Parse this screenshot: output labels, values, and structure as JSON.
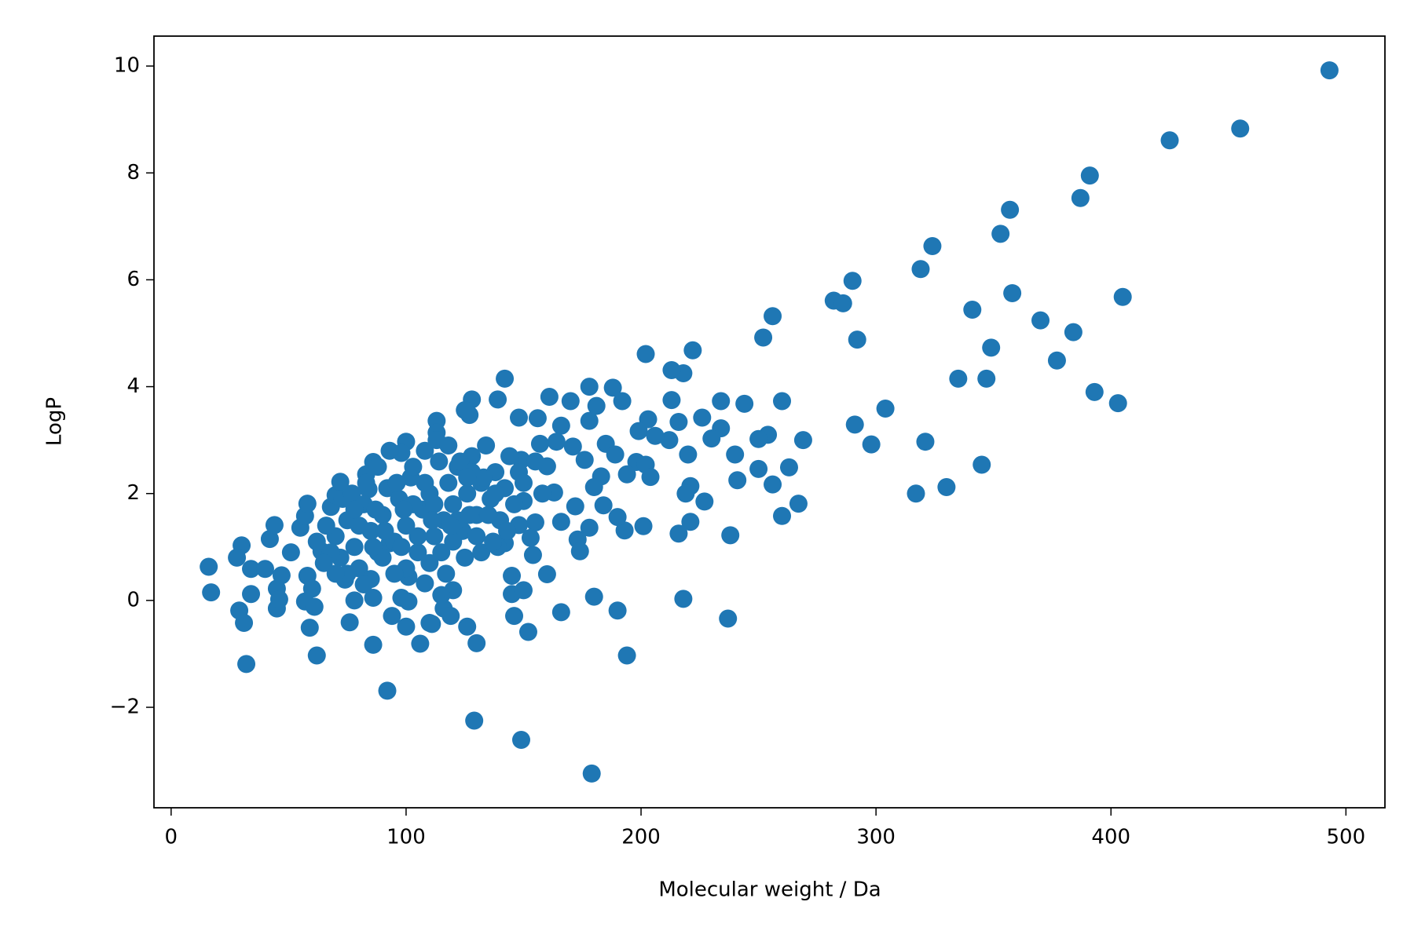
{
  "chart_data": {
    "type": "scatter",
    "x_label": "Molecular weight / Da",
    "y_label": "LogP",
    "color": "#1f77b4",
    "xlim": [
      -7.3,
      516.6
    ],
    "ylim": [
      -3.88,
      10.56
    ],
    "xticks": [
      0,
      100,
      200,
      300,
      400,
      500
    ],
    "yticks": [
      {
        "value": -2,
        "label": "−2"
      },
      0,
      2,
      4,
      6,
      8,
      10
    ],
    "grid": false,
    "x": [
      493,
      425,
      455,
      391,
      387,
      357,
      353,
      324,
      319,
      290,
      282,
      286,
      256,
      252,
      292,
      405,
      358,
      341,
      370,
      384,
      349,
      377,
      335,
      347,
      393,
      403,
      304,
      291,
      298,
      321,
      345,
      317,
      330,
      269,
      260,
      263,
      267,
      260,
      256,
      254,
      250,
      250,
      244,
      234,
      234,
      230,
      226,
      240,
      241,
      227,
      238,
      237,
      222,
      218,
      213,
      213,
      216,
      212,
      202,
      203,
      199,
      206,
      220,
      221,
      219,
      221,
      216,
      218,
      198,
      202,
      204,
      201,
      194,
      193,
      190,
      190,
      194,
      180,
      179,
      149,
      129,
      92,
      32,
      62,
      86,
      106,
      130,
      152,
      126,
      146,
      166,
      31,
      29,
      45,
      59,
      76,
      100,
      110,
      16,
      17,
      30,
      28,
      34,
      34,
      40,
      42,
      44,
      45,
      46,
      47,
      51,
      55,
      57,
      58,
      58,
      57,
      61,
      60,
      64,
      68,
      70,
      72,
      74,
      78,
      86,
      86,
      83,
      84,
      93,
      94,
      98,
      101,
      100,
      98,
      113,
      113,
      128,
      127,
      125,
      139,
      142,
      148,
      156,
      161,
      170,
      178,
      188,
      192,
      178,
      181,
      166,
      164,
      171,
      176,
      185,
      189,
      183,
      180,
      184,
      178,
      173,
      174,
      154,
      160,
      155,
      150,
      148,
      153,
      163,
      166,
      172,
      160,
      157,
      149,
      142,
      139,
      145,
      145,
      150,
      120,
      116,
      119,
      111,
      101,
      108,
      115,
      70,
      72,
      75,
      78,
      80,
      82,
      85,
      88,
      90,
      92,
      95,
      97,
      100,
      102,
      105,
      107,
      110,
      112,
      114,
      116,
      118,
      120,
      122,
      124,
      126,
      128,
      130,
      132,
      134,
      136,
      138,
      140,
      142,
      144,
      146,
      148,
      110,
      115,
      120,
      125,
      130,
      135,
      100,
      95,
      90,
      85,
      80,
      75,
      68,
      65,
      62,
      66,
      73,
      77,
      83,
      88,
      93,
      103,
      108,
      113,
      118,
      123,
      128,
      133,
      138,
      143,
      150,
      155,
      158,
      105,
      98,
      87,
      82,
      78,
      70,
      112,
      117,
      122,
      127,
      132,
      137,
      108,
      103,
      96,
      91,
      86,
      99,
      111,
      119,
      126
    ],
    "y": [
      9.92,
      8.61,
      8.83,
      7.95,
      7.53,
      7.31,
      6.86,
      6.63,
      6.2,
      5.98,
      5.61,
      5.56,
      5.32,
      4.92,
      4.88,
      5.68,
      5.75,
      5.44,
      5.24,
      5.02,
      4.73,
      4.49,
      4.15,
      4.15,
      3.9,
      3.69,
      3.59,
      3.29,
      2.92,
      2.97,
      2.54,
      2.0,
      2.12,
      3.0,
      3.73,
      2.49,
      1.81,
      1.58,
      2.17,
      3.1,
      3.02,
      2.46,
      3.68,
      3.73,
      3.22,
      3.03,
      3.42,
      2.73,
      2.25,
      1.85,
      1.22,
      -0.34,
      4.68,
      4.25,
      4.31,
      3.75,
      3.34,
      3.0,
      4.61,
      3.39,
      3.17,
      3.08,
      2.73,
      2.14,
      2.0,
      1.47,
      1.25,
      0.03,
      2.59,
      2.54,
      2.31,
      1.39,
      2.36,
      1.31,
      1.56,
      -0.19,
      -1.03,
      0.07,
      -3.24,
      -2.61,
      -2.25,
      -1.69,
      -1.19,
      -1.03,
      -0.83,
      -0.81,
      -0.8,
      -0.59,
      -0.49,
      -0.29,
      -0.22,
      -0.42,
      -0.19,
      -0.15,
      -0.51,
      -0.41,
      -0.49,
      -0.42,
      0.63,
      0.15,
      1.03,
      0.8,
      0.59,
      0.12,
      0.59,
      1.15,
      1.41,
      0.22,
      0.02,
      0.47,
      0.9,
      1.36,
      1.58,
      1.81,
      0.46,
      -0.02,
      -0.12,
      0.22,
      0.92,
      1.75,
      1.97,
      2.22,
      0.39,
      0,
      0.05,
      2.59,
      2.36,
      2.08,
      1.07,
      -0.29,
      0.05,
      -0.02,
      2.97,
      2.76,
      3.36,
      3.14,
      3.76,
      3.47,
      3.56,
      3.76,
      4.15,
      3.42,
      3.41,
      3.81,
      3.73,
      4.0,
      3.98,
      3.73,
      3.36,
      3.64,
      3.27,
      2.97,
      2.88,
      2.63,
      2.93,
      2.73,
      2.32,
      2.12,
      1.78,
      1.36,
      1.14,
      0.92,
      0.85,
      0.49,
      1.46,
      1.86,
      1.41,
      1.17,
      2.02,
      1.47,
      1.76,
      2.51,
      2.93,
      2.63,
      1.07,
      1.0,
      0.46,
      0.12,
      0.19,
      0.19,
      -0.15,
      -0.29,
      -0.44,
      0.44,
      0.32,
      0.1,
      1.2,
      0.8,
      1.5,
      1.0,
      0.6,
      1.8,
      1.3,
      0.9,
      1.6,
      2.1,
      1.1,
      1.9,
      1.4,
      2.3,
      0.9,
      1.7,
      2.0,
      1.2,
      2.6,
      1.5,
      2.2,
      1.8,
      2.5,
      1.3,
      2.0,
      2.7,
      1.6,
      2.2,
      2.9,
      1.9,
      2.4,
      1.5,
      2.1,
      2.7,
      1.8,
      2.4,
      0.7,
      0.9,
      1.1,
      0.8,
      1.2,
      1.6,
      0.6,
      0.5,
      0.8,
      0.4,
      1.4,
      0.5,
      0.9,
      0.7,
      1.1,
      1.4,
      1.9,
      2.0,
      2.2,
      2.5,
      2.8,
      2.5,
      2.8,
      3.0,
      2.9,
      2.6,
      2.4,
      2.3,
      2.0,
      1.3,
      2.2,
      2.6,
      2.0,
      1.2,
      1.0,
      1.7,
      0.3,
      1.7,
      0.5,
      1.8,
      0.5,
      1.5,
      1.6,
      0.9,
      1.1,
      2.2,
      1.8,
      2.2,
      1.3,
      1.0,
      1.7,
      1.5,
      1.4,
      2.3
    ]
  }
}
